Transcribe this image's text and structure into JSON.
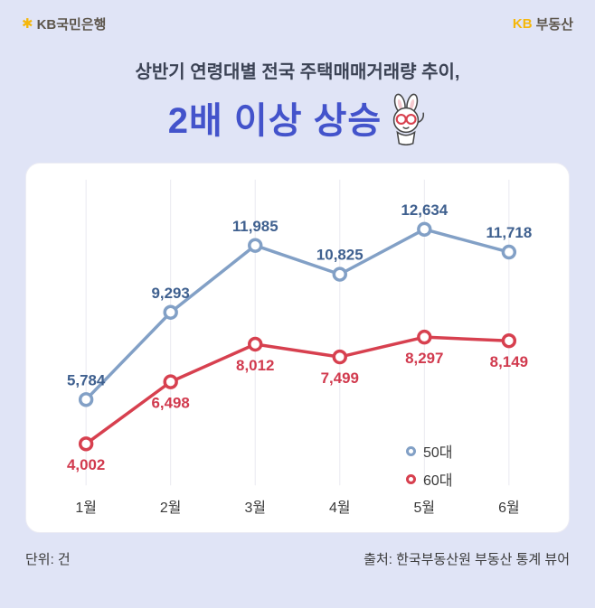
{
  "header": {
    "bank_logo_text": "KB국민은행",
    "realestate_logo_kb": "KB",
    "realestate_logo_suffix": "부동산",
    "star_glyph": "✱"
  },
  "title": {
    "line1": "상반기 연령대별 전국 주택매매거래량 추이,",
    "line2": "2배 이상 상승"
  },
  "colors": {
    "background": "#e0e4f6",
    "card": "#ffffff",
    "kb_yellow": "#f5b70a",
    "logo_text": "#5c554b",
    "title": "#3b4254",
    "subtitle": "#4353cb",
    "series_50s": "#82a0c6",
    "series_60s": "#d7404f"
  },
  "chart_data": {
    "type": "line",
    "title": "상반기 연령대별 전국 주택매매거래량 추이",
    "categories": [
      "1월",
      "2월",
      "3월",
      "4월",
      "5월",
      "6월"
    ],
    "series": [
      {
        "name": "50대",
        "color": "#82a0c6",
        "label_color": "#3f608f",
        "label_position": "above",
        "values": [
          5784,
          9293,
          11985,
          10825,
          12634,
          11718
        ],
        "labels": [
          "5,784",
          "9,293",
          "11,985",
          "10,825",
          "12,634",
          "11,718"
        ]
      },
      {
        "name": "60대",
        "color": "#d7404f",
        "label_color": "#d13a4e",
        "label_position": "below",
        "values": [
          4002,
          6498,
          8012,
          7499,
          8297,
          8149
        ],
        "labels": [
          "4,002",
          "6,498",
          "8,012",
          "7,499",
          "8,297",
          "8,149"
        ]
      }
    ],
    "ylim": [
      3200,
      13400
    ],
    "grid": "vertical-only",
    "grid_color": "#e9e9f0",
    "axis_label_color": "#3a3a3a",
    "legend_position": "inside-bottom-right",
    "xlabel": "",
    "ylabel": "단위: 건"
  },
  "footer": {
    "unit": "단위: 건",
    "source": "출처: 한국부동산원 부동산 통계 뷰어"
  }
}
